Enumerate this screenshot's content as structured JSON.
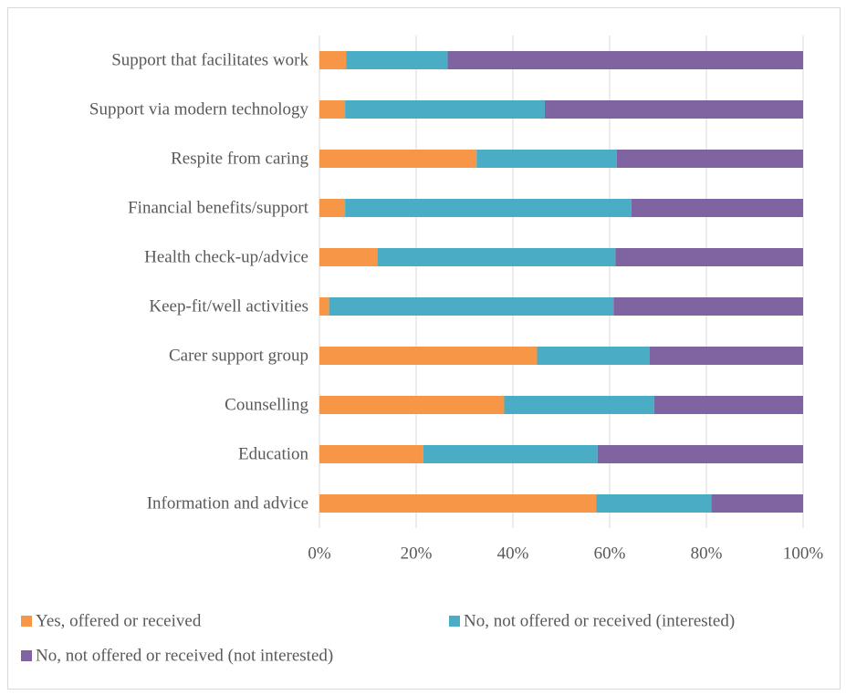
{
  "chart_data": {
    "type": "bar",
    "orientation": "horizontal",
    "stacked": "percent",
    "title": "",
    "xlabel": "",
    "ylabel": "",
    "xlim": [
      0,
      100
    ],
    "x_ticks": [
      "0%",
      "20%",
      "40%",
      "60%",
      "80%",
      "100%"
    ],
    "grid": true,
    "legend_position": "bottom",
    "categories": [
      "Support that facilitates work",
      "Support via modern technology",
      "Respite from caring",
      "Financial benefits/support",
      "Health check-up/advice",
      "Keep-fit/well activities",
      "Carer support group",
      "Counselling",
      "Education",
      "Information and advice"
    ],
    "series": [
      {
        "name": "Yes, offered or received",
        "color": "#f79646",
        "values": [
          5.5,
          5.3,
          32.5,
          5.3,
          12,
          2,
          45,
          38.2,
          21.5,
          57.2
        ]
      },
      {
        "name": "No, not offered or received (interested)",
        "color": "#4bacc6",
        "values": [
          21,
          41.3,
          29,
          59.2,
          49.2,
          58.8,
          23.3,
          31,
          36,
          23.8
        ]
      },
      {
        "name": "No, not offered or received (not interested)",
        "color": "#8064a2",
        "values": [
          73.5,
          53.4,
          38.5,
          35.5,
          38.8,
          39.2,
          31.7,
          30.8,
          42.5,
          19
        ]
      }
    ]
  }
}
